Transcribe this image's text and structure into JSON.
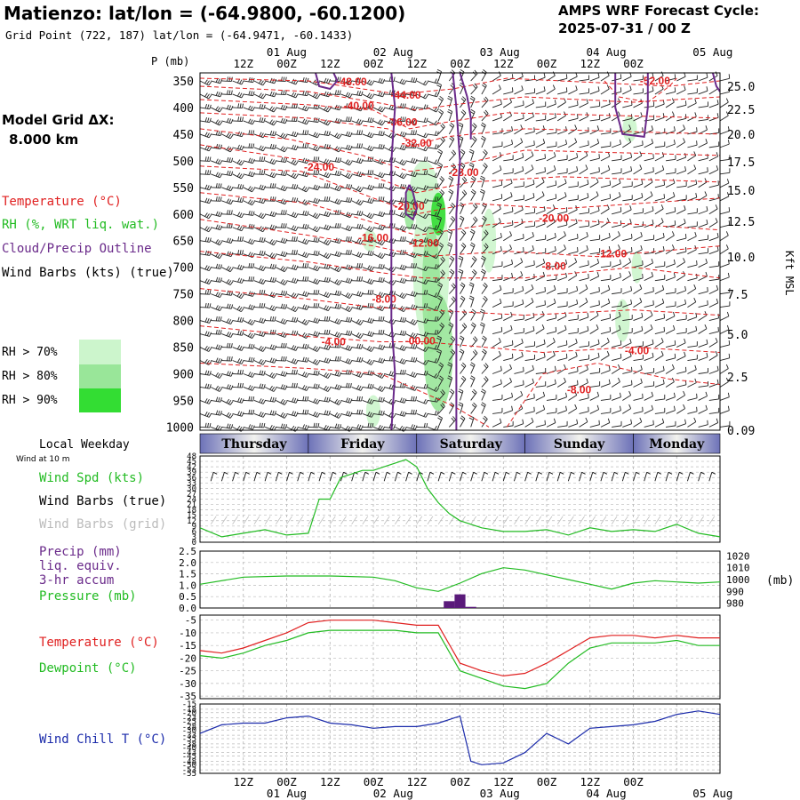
{
  "header": {
    "title": "Matienzo:  lat/lon = (-64.9800, -60.1200)",
    "subtitle": "Grid Point (722, 187) lat/lon = (-64.9471, -60.1433)",
    "cycle_label": "AMPS WRF Forecast Cycle:",
    "cycle_value": "2025-07-31 / 00  Z"
  },
  "left_panel": {
    "model_grid_label": "Model Grid ΔX:",
    "model_grid_value": "8.000 km",
    "legend_temperature": "Temperature (°C)",
    "legend_rh": "RH (%, WRT liq. wat.)",
    "legend_cloud": "Cloud/Precip Outline",
    "legend_wind": "Wind Barbs (kts) (true)",
    "rh_bins": [
      "RH > 70%",
      "RH > 80%",
      "RH > 90%"
    ],
    "local_weekday": "Local Weekday",
    "wind_at": "Wind at 10 m",
    "wind_spd": "Wind Spd (kts)",
    "wind_barbs_true": "Wind Barbs (true)",
    "wind_barbs_grid": "Wind Barbs (grid)",
    "precip_1": "Precip (mm)",
    "precip_2": "liq. equiv.",
    "precip_3": "3-hr accum",
    "pressure": "Pressure (mb)",
    "temperature": "Temperature (°C)",
    "dewpoint": "Dewpoint (°C)",
    "wind_chill": "Wind Chill T (°C)"
  },
  "colors": {
    "temperature": "#e02020",
    "rh70": "#ccf5cc",
    "rh80": "#99e699",
    "rh90": "#33dd33",
    "cloud": "#6a2a8a",
    "green_line": "#22bb22",
    "blue_line": "#1a2aaa",
    "precip": "#5a1a7a"
  },
  "time_axis": {
    "top_hours": [
      "12Z",
      "00Z",
      "12Z",
      "00Z",
      "12Z",
      "00Z",
      "12Z",
      "00Z",
      "12Z",
      "00Z"
    ],
    "top_dates": [
      "01 Aug",
      "02 Aug",
      "03 Aug",
      "04 Aug",
      "05 Aug"
    ],
    "bottom_hours": [
      "12Z",
      "00Z",
      "12Z",
      "00Z",
      "12Z",
      "00Z",
      "12Z",
      "00Z",
      "12Z",
      "00Z"
    ],
    "bottom_dates": [
      "01 Aug",
      "02 Aug",
      "03 Aug",
      "04 Aug",
      "05 Aug"
    ],
    "weekdays": [
      "Thursday",
      "Friday",
      "Saturday",
      "Sunday",
      "Monday"
    ]
  },
  "chart_data": [
    {
      "type": "heatmap",
      "p_unit_label": "P (mb)",
      "pressure_levels": [
        350,
        400,
        450,
        500,
        550,
        600,
        650,
        700,
        750,
        800,
        850,
        900,
        950,
        1000
      ],
      "height_ticks": [
        "25.0",
        "22.5",
        "20.0",
        "17.5",
        "15.0",
        "12.5",
        "10.0",
        "7.5",
        "5.0",
        "2.5",
        "0.09"
      ],
      "height_unit": "Kft MSL",
      "temperature_contour_labels": [
        {
          "label": "-48.00",
          "hour": 42,
          "p": 352
        },
        {
          "label": "-44.00",
          "hour": 57,
          "p": 377
        },
        {
          "label": "-40.00",
          "hour": 44,
          "p": 397
        },
        {
          "label": "-36.00",
          "hour": 56,
          "p": 428
        },
        {
          "label": "-32.00",
          "hour": 60,
          "p": 467
        },
        {
          "label": "-24.00",
          "hour": 33,
          "p": 512
        },
        {
          "label": "-28.00",
          "hour": 73,
          "p": 522
        },
        {
          "label": "-20.00",
          "hour": 58,
          "p": 585
        },
        {
          "label": "-20.00",
          "hour": 98,
          "p": 608
        },
        {
          "label": "-16.00",
          "hour": 48,
          "p": 645
        },
        {
          "label": "-12.00",
          "hour": 62,
          "p": 655
        },
        {
          "label": "-12.00",
          "hour": 114,
          "p": 675
        },
        {
          "label": "-8.00",
          "hour": 98,
          "p": 698
        },
        {
          "label": "-8.00",
          "hour": 51,
          "p": 760
        },
        {
          "label": "-4.00",
          "hour": 37,
          "p": 840
        },
        {
          "label": "-00.00",
          "hour": 61,
          "p": 838
        },
        {
          "label": "-4.00",
          "hour": 121,
          "p": 857
        },
        {
          "label": "-8.00",
          "hour": 105,
          "p": 930
        },
        {
          "label": "-52.00",
          "hour": 126,
          "p": 350
        }
      ]
    },
    {
      "type": "line",
      "name_label": "Wind Spd (kts)",
      "y_ticks": [
        48,
        45,
        42,
        39,
        36,
        33,
        30,
        27,
        24,
        21,
        18,
        15,
        12,
        9,
        6,
        3,
        0
      ],
      "ylim": [
        0,
        48
      ],
      "x_hours": [
        0,
        6,
        12,
        18,
        24,
        30,
        33,
        36,
        39,
        42,
        45,
        48,
        51,
        54,
        57,
        60,
        63,
        66,
        69,
        72,
        78,
        84,
        90,
        96,
        102,
        108,
        114,
        120,
        126,
        132,
        138,
        141,
        144
      ],
      "values": [
        8,
        3,
        5,
        7,
        4,
        5,
        24,
        24,
        36,
        38,
        40,
        40,
        42,
        44,
        46,
        42,
        30,
        22,
        16,
        12,
        8,
        6,
        6,
        7,
        4,
        8,
        6,
        7,
        6,
        10,
        5,
        4,
        3
      ]
    },
    {
      "type": "line",
      "name_label": "Pressure (mb)",
      "precip_ticks": [
        "2.5",
        "2.0",
        "1.5",
        "1.0",
        "0.5",
        "0.0"
      ],
      "pressure_ticks": [
        "1020",
        "1010",
        "1000",
        "990",
        "980"
      ],
      "precip_ylim": [
        0,
        2.5
      ],
      "pressure_ylim": [
        976,
        1024
      ],
      "x_hours": [
        0,
        12,
        24,
        36,
        48,
        54,
        60,
        66,
        72,
        78,
        84,
        90,
        96,
        102,
        108,
        114,
        120,
        126,
        132,
        138,
        144
      ],
      "pressure": [
        996,
        1002,
        1003,
        1003,
        1002,
        999,
        993,
        990,
        997,
        1005,
        1010,
        1008,
        1004,
        1000,
        996,
        992,
        997,
        999,
        998,
        997,
        998
      ],
      "precip_hours": [
        69,
        72,
        75
      ],
      "precip_values": [
        0.3,
        0.6,
        0.05
      ]
    },
    {
      "type": "line",
      "name_label": "Temperature (°C)",
      "y_ticks": [
        -5,
        -10,
        -15,
        -20,
        -25,
        -30,
        -35
      ],
      "ylim": [
        -36,
        -3
      ],
      "x_hours": [
        0,
        6,
        12,
        18,
        24,
        30,
        36,
        42,
        48,
        54,
        60,
        66,
        72,
        78,
        84,
        90,
        96,
        102,
        108,
        114,
        120,
        126,
        132,
        138,
        144
      ],
      "temperature": [
        -17,
        -18,
        -16,
        -13,
        -10,
        -6,
        -5,
        -5,
        -5,
        -6,
        -7,
        -7,
        -22,
        -25,
        -27,
        -26,
        -22,
        -17,
        -12,
        -11,
        -11,
        -12,
        -11,
        -12,
        -12
      ],
      "dewpoint": [
        -19,
        -20,
        -18,
        -15,
        -13,
        -10,
        -9,
        -9,
        -9,
        -9,
        -10,
        -10,
        -25,
        -28,
        -31,
        -32,
        -30,
        -22,
        -16,
        -14,
        -14,
        -14,
        -13,
        -15,
        -15
      ]
    },
    {
      "type": "line",
      "name_label": "Wind Chill T (°C)",
      "y_ticks": [
        -15,
        -18,
        -20,
        -23,
        -25,
        -28,
        -30,
        -33,
        -35,
        -38,
        -40,
        -43,
        -45,
        -48,
        -50,
        -53,
        -55
      ],
      "ylim": [
        -55,
        -15
      ],
      "x_hours": [
        0,
        6,
        12,
        18,
        24,
        30,
        36,
        42,
        48,
        54,
        60,
        66,
        72,
        75,
        78,
        84,
        90,
        96,
        102,
        108,
        114,
        120,
        126,
        132,
        138,
        144
      ],
      "values": [
        -32,
        -27,
        -26,
        -26,
        -23,
        -22,
        -26,
        -27,
        -29,
        -28,
        -28,
        -26,
        -22,
        -48,
        -50,
        -49,
        -43,
        -32,
        -38,
        -29,
        -28,
        -27,
        -25,
        -21,
        -19,
        -21
      ]
    }
  ]
}
